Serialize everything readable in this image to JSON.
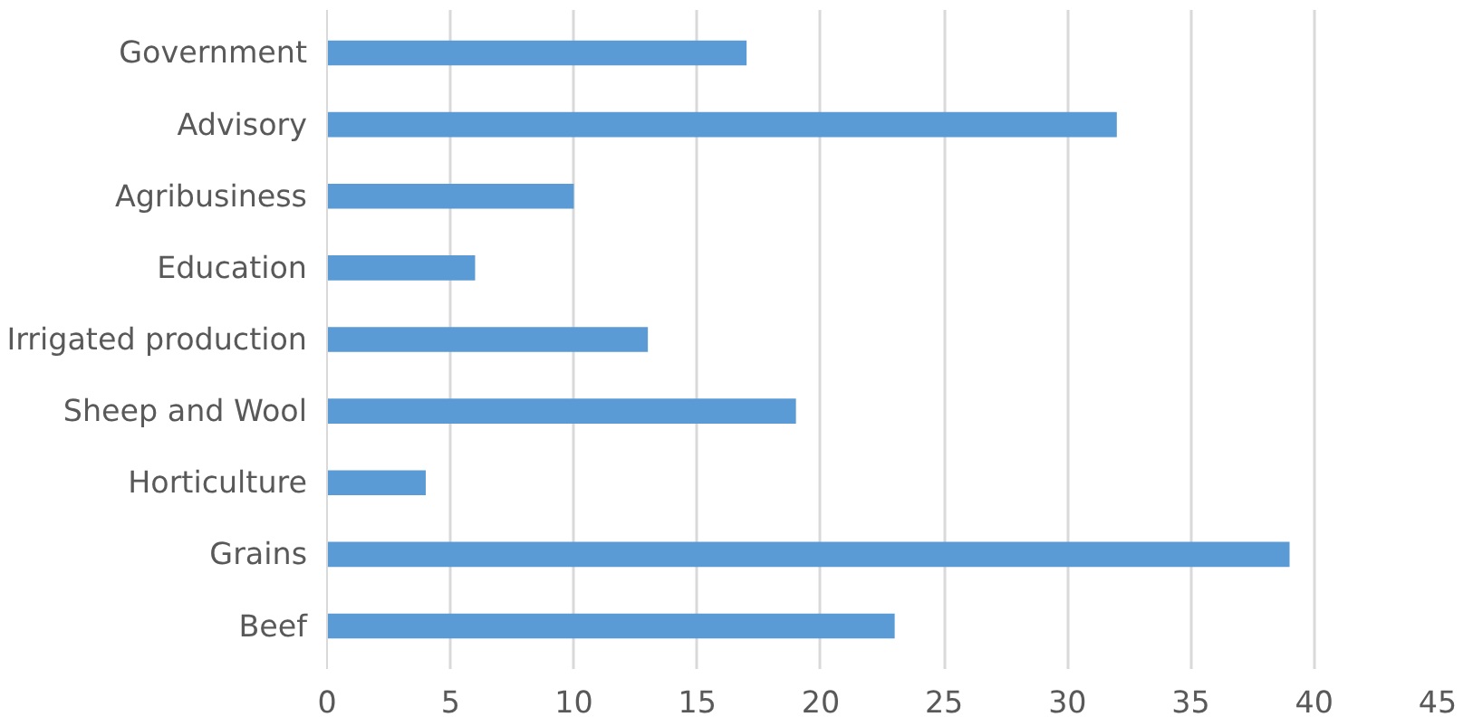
{
  "chart_data": {
    "type": "bar",
    "orientation": "horizontal",
    "categories": [
      "Government",
      "Advisory",
      "Agribusiness",
      "Education",
      "Irrigated production",
      "Sheep and Wool",
      "Horticulture",
      "Grains",
      "Beef"
    ],
    "values": [
      17,
      32,
      10,
      6,
      13,
      19,
      4,
      39,
      23
    ],
    "color": "#5b9bd5",
    "xlim": [
      0,
      45
    ],
    "xticks": [
      0,
      5,
      10,
      15,
      20,
      25,
      30,
      35,
      40,
      45
    ],
    "grid": "x"
  }
}
